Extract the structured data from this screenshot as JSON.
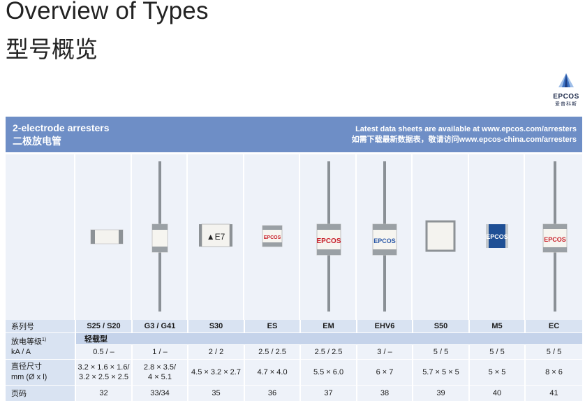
{
  "title_en": "Overview of Types",
  "title_cn": "型号概览",
  "logo": {
    "text": "EPCOS",
    "sub": "爱普科斯",
    "icon": "epcos-fan-logo"
  },
  "banner": {
    "heading_en": "2-electrode arresters",
    "heading_cn": "二极放电管",
    "note_en": "Latest data sheets are available at www.epcos.com/arresters",
    "note_cn": "如需下载最新数据表，敬请访问www.epcos-china.com/arresters"
  },
  "photo_labels": {
    "s30": "▲E7",
    "es": "EPCOS",
    "em": "EPCOS",
    "ehv6": "EPCOS",
    "m5": "EPCOS",
    "ec": "EPCOS"
  },
  "table": {
    "series_label": "系列号",
    "rating_label": "放电等级",
    "rating_sup": "1)",
    "rating_unit": "kA / A",
    "light_type": "轻载型",
    "dims_label": "直径尺寸",
    "dims_unit": "mm (Ø x l)",
    "page_label": "页码",
    "columns": [
      {
        "series": "S25 / S20",
        "rating": "0.5 / –",
        "dims1": "3.2 × 1.6 × 1.6/",
        "dims2": "3.2 × 2.5 × 2.5",
        "page": "32"
      },
      {
        "series": "G3 / G41",
        "rating": "1 / –",
        "dims1": "2.8 × 3.5/",
        "dims2": "4 × 5.1",
        "page": "33/34"
      },
      {
        "series": "S30",
        "rating": "2 / 2",
        "dims1": "4.5 × 3.2 × 2.7",
        "dims2": "",
        "page": "35"
      },
      {
        "series": "ES",
        "rating": "2.5 / 2.5",
        "dims1": "4.7 × 4.0",
        "dims2": "",
        "page": "36"
      },
      {
        "series": "EM",
        "rating": "2.5 / 2.5",
        "dims1": "5.5 × 6.0",
        "dims2": "",
        "page": "37"
      },
      {
        "series": "EHV6",
        "rating": "3 / –",
        "dims1": "6 × 7",
        "dims2": "",
        "page": "38"
      },
      {
        "series": "S50",
        "rating": "5 / 5",
        "dims1": "5.7 × 5 × 5",
        "dims2": "",
        "page": "39"
      },
      {
        "series": "M5",
        "rating": "5 / 5",
        "dims1": "5 × 5",
        "dims2": "",
        "page": "40"
      },
      {
        "series": "EC",
        "rating": "5 / 5",
        "dims1": "8 × 6",
        "dims2": "",
        "page": "41"
      }
    ]
  },
  "colors": {
    "banner": "#6e8ec6",
    "label_bg": "#d9e3f2",
    "photo_bg": "#eef2f9",
    "epcos_red": "#c8202a",
    "epcos_blue": "#2b58a8",
    "m5_body": "#1e4f95"
  }
}
